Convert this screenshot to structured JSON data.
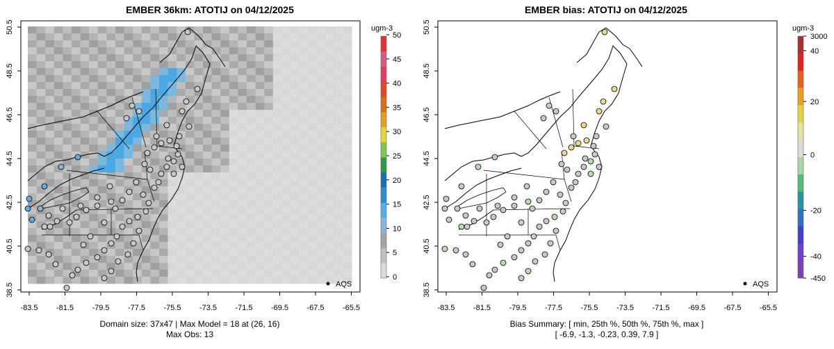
{
  "panels": [
    {
      "title": "EMBER 36km: ATOTIJ on 04/12/2025",
      "legend_label": "AQS",
      "colorbar": {
        "unit": "ugm-3",
        "ticks": [
          "0",
          "5",
          "10",
          "15",
          "20",
          "25",
          "30",
          "35",
          "40",
          "45",
          "50"
        ],
        "range": [
          0,
          50
        ],
        "colors": [
          "#dcdcdc",
          "#c0c0c0",
          "#a4a4a4",
          "#8cb4d8",
          "#56b0e6",
          "#2b8fd0",
          "#1a6fae",
          "#2e9a4a",
          "#7ec850",
          "#e4d63a",
          "#e0a020",
          "#d57014",
          "#e04828",
          "#e04060",
          "#d06080",
          "#e43030"
        ]
      },
      "footer": [
        "Domain size: 37x47 | Max Model = 18 at (26, 16)",
        "Max Obs: 13"
      ]
    },
    {
      "title": "EMBER bias: ATOTIJ on 04/12/2025",
      "legend_label": "AQS",
      "colorbar": {
        "unit": "ugm-3",
        "ticks": [
          "3000",
          "40",
          "20",
          "0",
          "-20",
          "-40",
          "-450"
        ],
        "colors": [
          "#a83030",
          "#e42020",
          "#e86020",
          "#e8a020",
          "#e8d040",
          "#e8e0a0",
          "#dcdcdc",
          "#a8d8a8",
          "#58b878",
          "#2098a0",
          "#3070c8",
          "#4040d0",
          "#7040d0",
          "#8040b0"
        ]
      },
      "footer": [
        "Bias Summary: [ min, 25th %, 50th %, 75th %, max ]",
        "[ -6.9,   -1.3,   -0.23,   0.39,   7.9 ]"
      ]
    }
  ],
  "x_axis": {
    "ticks": [
      "-83.5",
      "-81.5",
      "-79.5",
      "-77.5",
      "-75.5",
      "-73.5",
      "-71.5",
      "-69.5",
      "-67.5",
      "-65.5"
    ]
  },
  "y_axis": {
    "ticks": [
      "38.5",
      "40.5",
      "42.5",
      "44.5",
      "46.5",
      "48.5",
      "50.5"
    ]
  },
  "colors": {
    "obs_default": "#c8c8c8",
    "obs_blue": "#56b0e6",
    "obs_mid": "#8cb4d8",
    "bias_yellow": "#e8d888",
    "bias_green": "#b8dcb0"
  }
}
